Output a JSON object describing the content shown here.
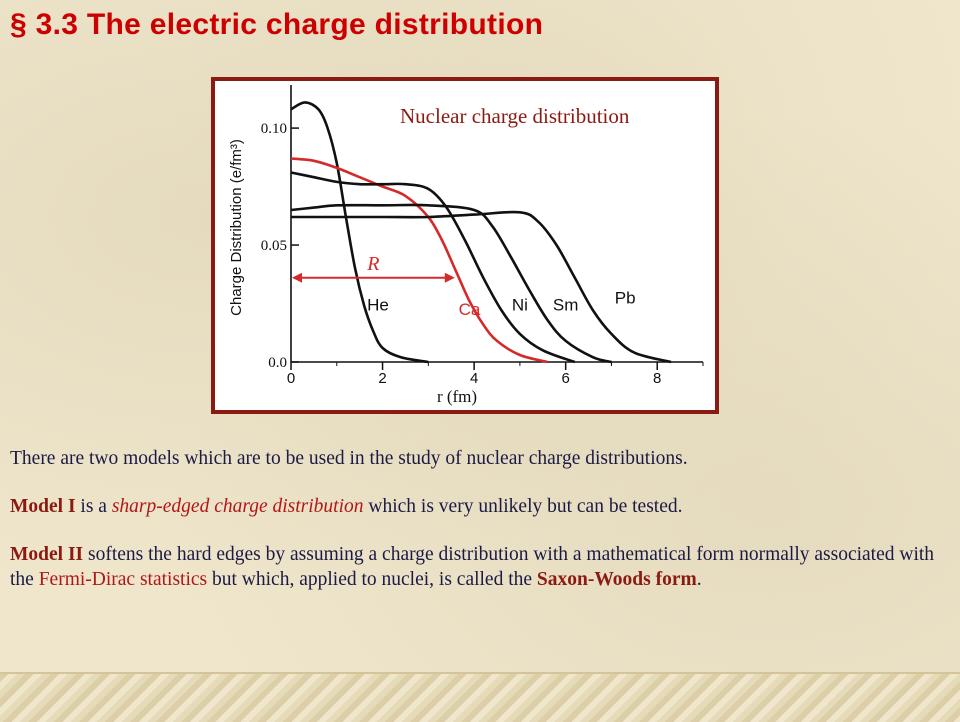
{
  "slide": {
    "title": "§ 3.3 The electric charge distribution",
    "figure_caption": "Nuclear charge distribution",
    "paragraphs": {
      "p1": "There are two models which are to be used in the study of nuclear charge distributions.",
      "p2_model": "Model I",
      "p2_mid": " is a ",
      "p2_sharp": "sharp-edged charge distribution",
      "p2_end": " which is very unlikely but can be tested.",
      "p3_model": "Model II",
      "p3_a": " softens the hard edges by assuming a charge distribution with a mathematical form normally associated with the ",
      "p3_fd": "Fermi-Dirac statistics",
      "p3_b": " but which, applied to nuclei, is called the ",
      "p3_sw": "Saxon-Woods form",
      "p3_end": "."
    }
  },
  "colors": {
    "title": "#cc0000",
    "frame": "#8b1a12",
    "ca_curve": "#d42a2a",
    "text": "#1a1a44"
  },
  "chart_data": {
    "type": "line",
    "ylabel": "Charge Distribution (e/fm³)",
    "xlabel": "r (fm)",
    "xlim": [
      0,
      9
    ],
    "ylim": [
      0,
      0.115
    ],
    "x_ticks": [
      "0",
      "2",
      "4",
      "6",
      "8"
    ],
    "y_ticks": [
      "0.0",
      "0.05",
      "0.10"
    ],
    "annotation": "R",
    "annotation_R_value": 3.6,
    "series": [
      {
        "name": "He",
        "points": [
          [
            0,
            0.108
          ],
          [
            0.3,
            0.111
          ],
          [
            0.6,
            0.108
          ],
          [
            0.8,
            0.1
          ],
          [
            1.0,
            0.085
          ],
          [
            1.2,
            0.062
          ],
          [
            1.4,
            0.04
          ],
          [
            1.6,
            0.024
          ],
          [
            1.8,
            0.013
          ],
          [
            2.0,
            0.006
          ],
          [
            2.4,
            0.002
          ],
          [
            3.0,
            0.0
          ]
        ]
      },
      {
        "name": "Ca",
        "points": [
          [
            0,
            0.087
          ],
          [
            0.5,
            0.086
          ],
          [
            1.0,
            0.083
          ],
          [
            1.5,
            0.079
          ],
          [
            2.0,
            0.075
          ],
          [
            2.5,
            0.071
          ],
          [
            3.0,
            0.062
          ],
          [
            3.3,
            0.052
          ],
          [
            3.6,
            0.039
          ],
          [
            3.9,
            0.026
          ],
          [
            4.2,
            0.016
          ],
          [
            4.5,
            0.009
          ],
          [
            5.0,
            0.003
          ],
          [
            5.6,
            0.0
          ]
        ]
      },
      {
        "name": "Ni",
        "points": [
          [
            0,
            0.081
          ],
          [
            0.5,
            0.079
          ],
          [
            1.0,
            0.077
          ],
          [
            1.5,
            0.076
          ],
          [
            2.0,
            0.076
          ],
          [
            2.5,
            0.076
          ],
          [
            3.0,
            0.074
          ],
          [
            3.4,
            0.066
          ],
          [
            3.8,
            0.052
          ],
          [
            4.2,
            0.036
          ],
          [
            4.6,
            0.022
          ],
          [
            5.0,
            0.012
          ],
          [
            5.5,
            0.005
          ],
          [
            6.2,
            0.0
          ]
        ]
      },
      {
        "name": "Sm",
        "points": [
          [
            0,
            0.065
          ],
          [
            0.5,
            0.066
          ],
          [
            1.0,
            0.067
          ],
          [
            2.0,
            0.067
          ],
          [
            3.0,
            0.067
          ],
          [
            4.0,
            0.065
          ],
          [
            4.4,
            0.058
          ],
          [
            4.8,
            0.045
          ],
          [
            5.2,
            0.031
          ],
          [
            5.6,
            0.018
          ],
          [
            6.0,
            0.009
          ],
          [
            6.6,
            0.002
          ],
          [
            7.0,
            0.0
          ]
        ]
      },
      {
        "name": "Pb",
        "points": [
          [
            0,
            0.062
          ],
          [
            1.0,
            0.062
          ],
          [
            2.0,
            0.062
          ],
          [
            3.0,
            0.062
          ],
          [
            4.0,
            0.063
          ],
          [
            5.0,
            0.064
          ],
          [
            5.4,
            0.06
          ],
          [
            5.8,
            0.05
          ],
          [
            6.2,
            0.036
          ],
          [
            6.6,
            0.022
          ],
          [
            7.0,
            0.012
          ],
          [
            7.5,
            0.004
          ],
          [
            8.3,
            0.0
          ]
        ]
      }
    ]
  }
}
